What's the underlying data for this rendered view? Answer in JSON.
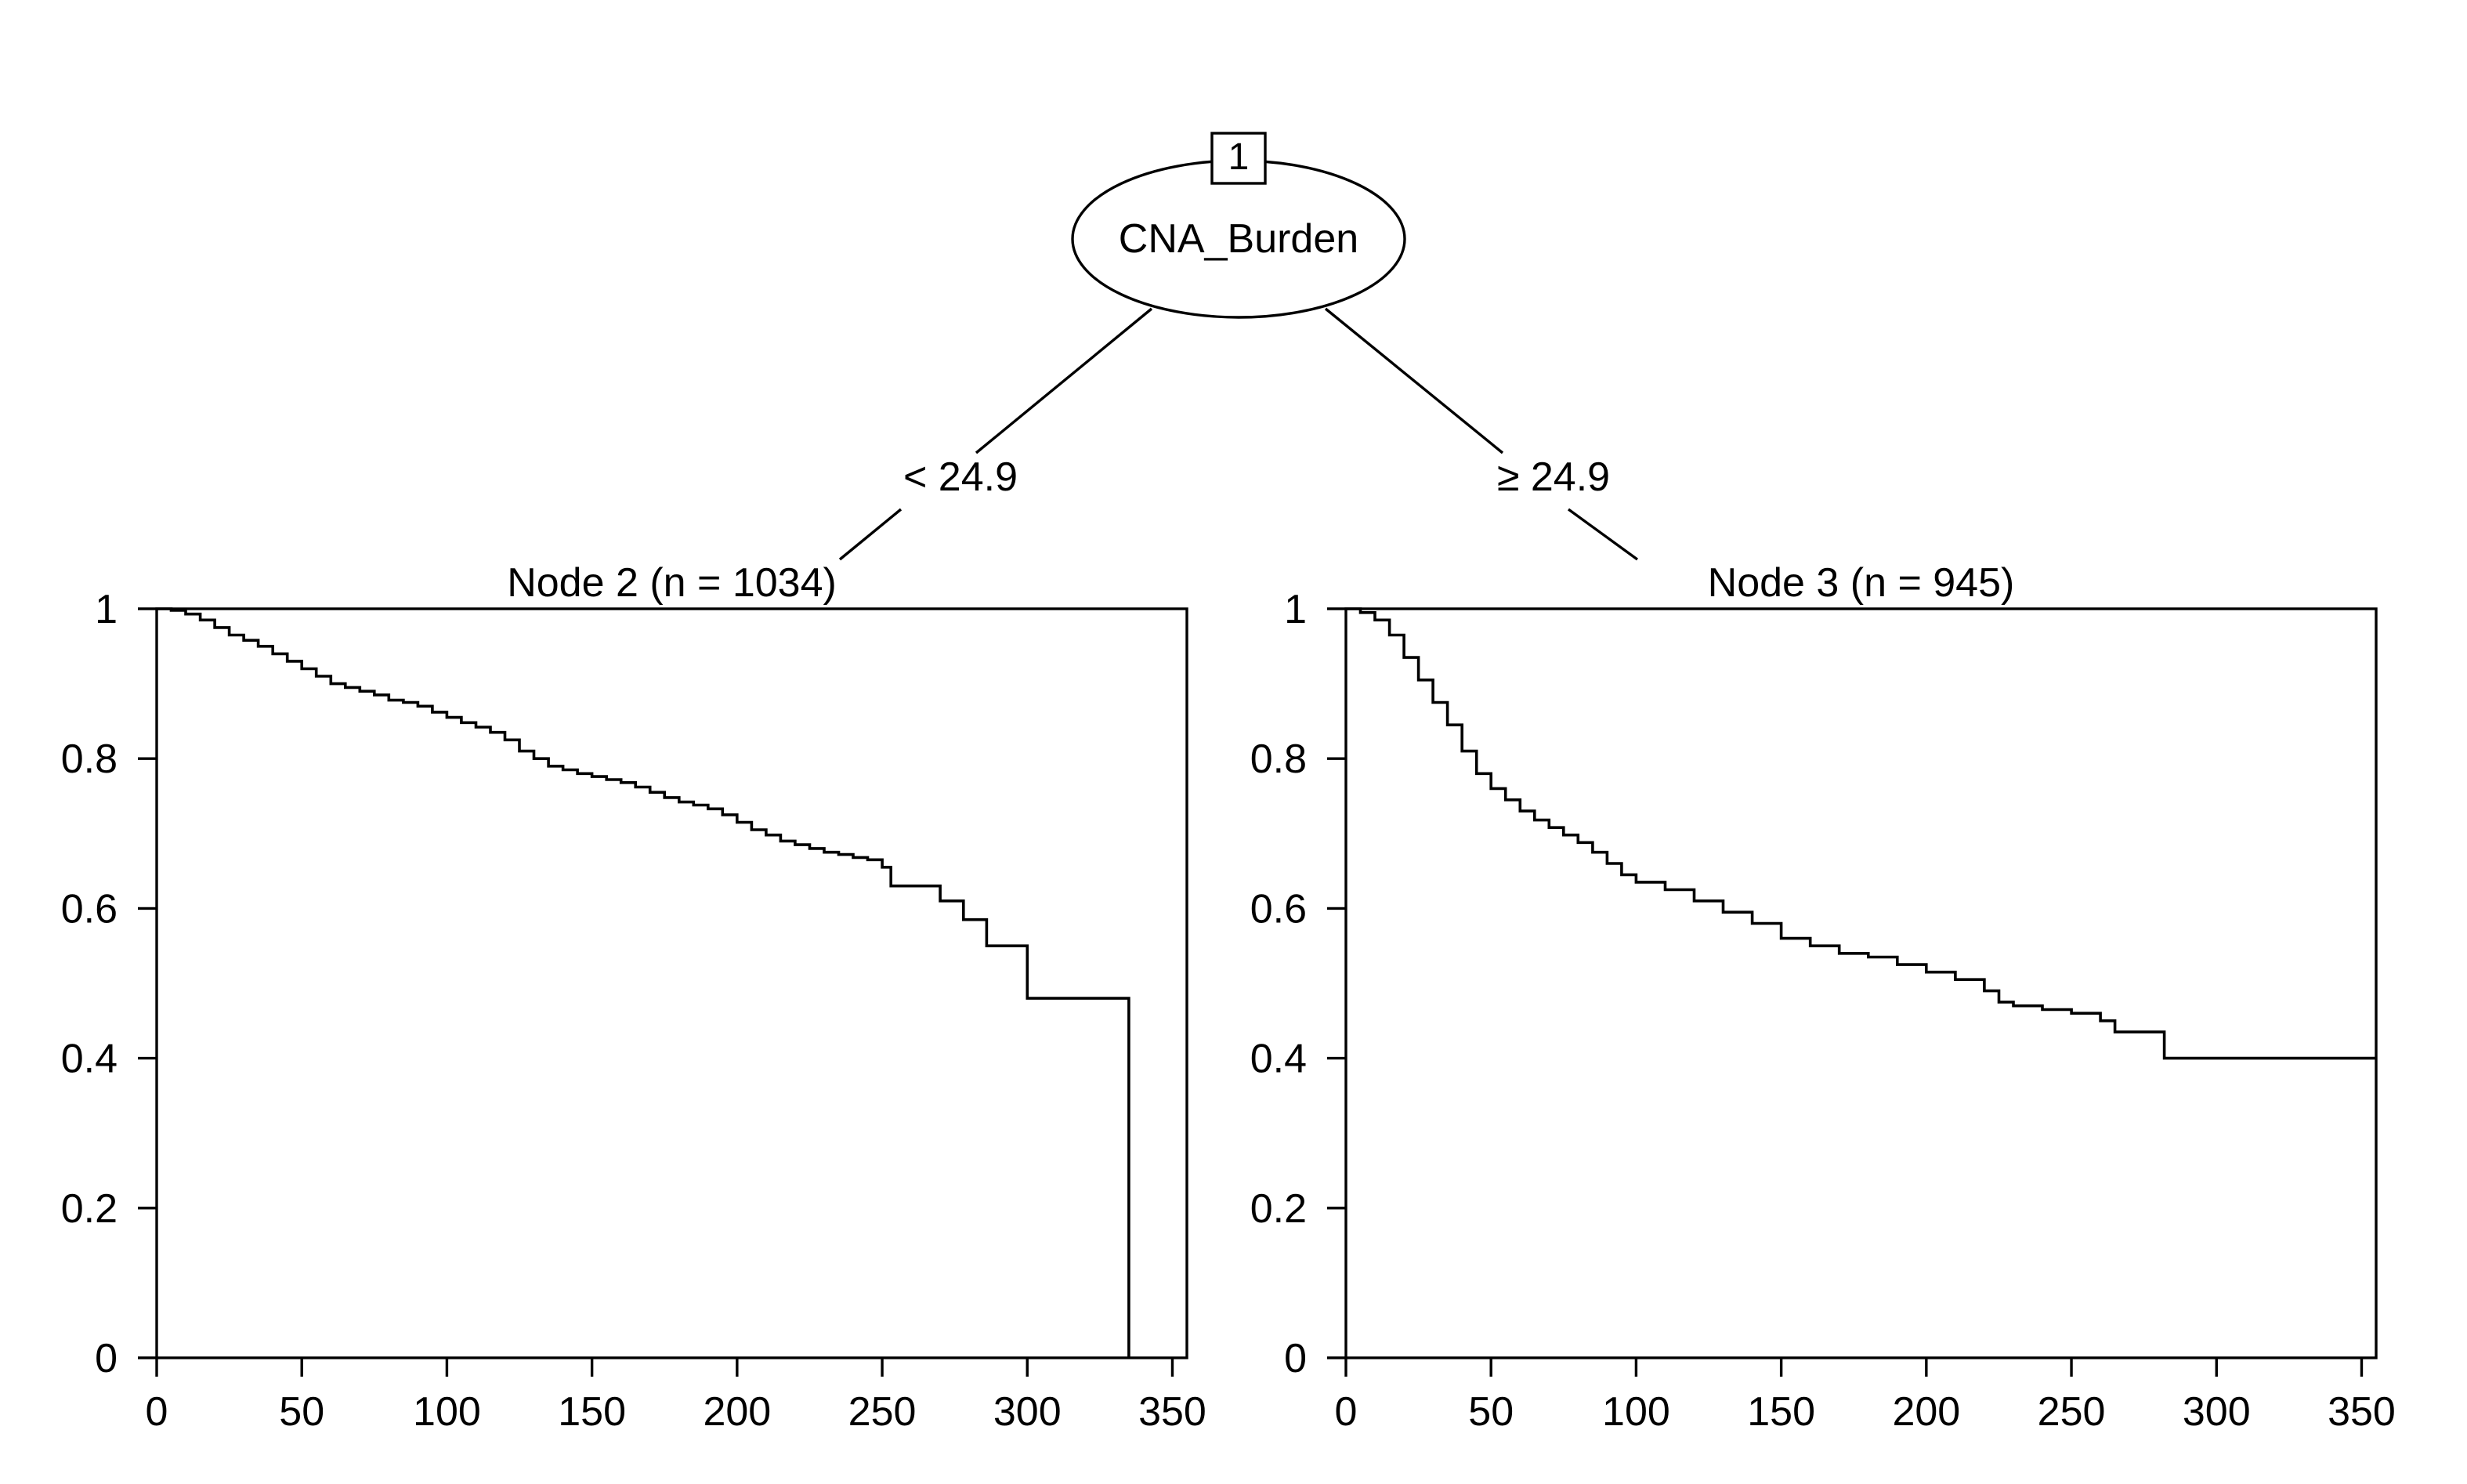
{
  "tree": {
    "root": {
      "id": "1",
      "variable": "CNA_Burden"
    },
    "left_edge_label": "< 24.9",
    "right_edge_label": "≥ 24.9"
  },
  "colors": {
    "line": "#000000",
    "background": "#ffffff"
  },
  "chart_data": [
    {
      "type": "line",
      "step": true,
      "title": "Node 2 (n = 1034)",
      "xlabel": "",
      "ylabel": "",
      "xlim": [
        0,
        355
      ],
      "ylim": [
        0,
        1
      ],
      "x_ticks": [
        "0",
        "50",
        "100",
        "150",
        "200",
        "250",
        "300",
        "350"
      ],
      "y_ticks": [
        "0",
        "0.2",
        "0.4",
        "0.6",
        "0.8",
        "1"
      ],
      "grid": false,
      "series": [
        {
          "x": [
            0,
            5,
            10,
            15,
            20,
            25,
            30,
            35,
            40,
            45,
            50,
            55,
            60,
            65,
            70,
            75,
            80,
            85,
            90,
            95,
            100,
            105,
            110,
            115,
            120,
            125,
            130,
            135,
            140,
            145,
            150,
            155,
            160,
            165,
            170,
            175,
            180,
            185,
            190,
            195,
            200,
            205,
            210,
            215,
            220,
            225,
            230,
            235,
            240,
            245,
            250,
            253,
            260,
            270,
            278,
            286,
            300,
            335,
            335
          ],
          "y": [
            1.0,
            0.998,
            0.993,
            0.985,
            0.975,
            0.965,
            0.958,
            0.95,
            0.94,
            0.93,
            0.92,
            0.91,
            0.9,
            0.895,
            0.89,
            0.885,
            0.878,
            0.875,
            0.87,
            0.862,
            0.855,
            0.848,
            0.842,
            0.835,
            0.825,
            0.81,
            0.8,
            0.79,
            0.785,
            0.78,
            0.776,
            0.772,
            0.768,
            0.762,
            0.755,
            0.748,
            0.742,
            0.738,
            0.733,
            0.725,
            0.715,
            0.705,
            0.698,
            0.69,
            0.685,
            0.68,
            0.675,
            0.672,
            0.668,
            0.665,
            0.655,
            0.63,
            0.63,
            0.61,
            0.585,
            0.55,
            0.48,
            0.48,
            0.0
          ]
        }
      ]
    },
    {
      "type": "line",
      "step": true,
      "title": "Node 3 (n = 945)",
      "xlabel": "",
      "ylabel": "",
      "xlim": [
        0,
        355
      ],
      "ylim": [
        0,
        1
      ],
      "x_ticks": [
        "0",
        "50",
        "100",
        "150",
        "200",
        "250",
        "300",
        "350"
      ],
      "y_ticks": [
        "0",
        "0.2",
        "0.4",
        "0.6",
        "0.8",
        "1"
      ],
      "grid": false,
      "series": [
        {
          "x": [
            0,
            5,
            10,
            15,
            20,
            25,
            30,
            35,
            40,
            45,
            50,
            55,
            60,
            65,
            70,
            75,
            80,
            85,
            90,
            95,
            100,
            110,
            120,
            130,
            140,
            150,
            160,
            170,
            180,
            190,
            200,
            210,
            220,
            225,
            230,
            240,
            250,
            260,
            265,
            282,
            300,
            355
          ],
          "y": [
            1.0,
            0.995,
            0.985,
            0.965,
            0.935,
            0.905,
            0.875,
            0.845,
            0.81,
            0.78,
            0.76,
            0.745,
            0.73,
            0.718,
            0.708,
            0.698,
            0.688,
            0.675,
            0.66,
            0.645,
            0.635,
            0.625,
            0.61,
            0.595,
            0.58,
            0.56,
            0.55,
            0.54,
            0.535,
            0.525,
            0.515,
            0.505,
            0.49,
            0.475,
            0.47,
            0.465,
            0.46,
            0.45,
            0.435,
            0.4,
            0.4,
            0.4
          ]
        }
      ]
    }
  ]
}
